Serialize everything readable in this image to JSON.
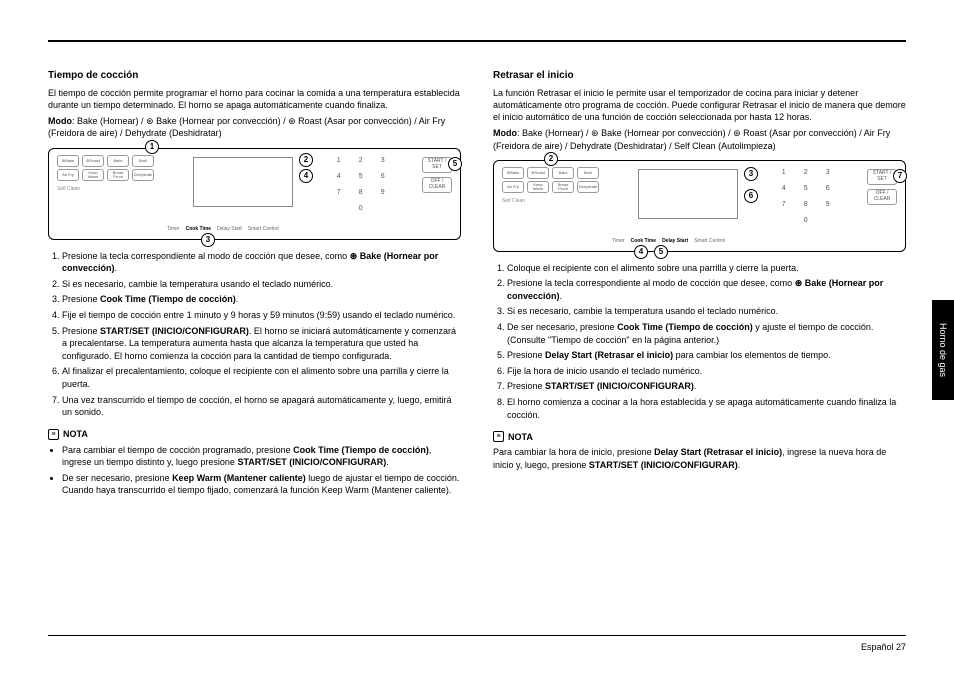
{
  "sideTab": "Horno de gas",
  "footer": "Español  27",
  "left": {
    "heading": "Tiempo de cocción",
    "intro": "El tiempo de cocción permite programar el horno para cocinar la comida a una temperatura establecida durante un tiempo determinado. El horno se apaga automáticamente cuando finaliza.",
    "modo_label": "Modo",
    "modo_text": ": Bake (Hornear) / ⊛ Bake (Hornear por convección) / ⊛ Roast (Asar por convección) / Air Fry (Freidora de aire) / Dehydrate (Deshidratar)",
    "panel": {
      "row1": [
        "⊛Bake",
        "⊛Roast",
        "Bake",
        "Broil"
      ],
      "row2": [
        "Air Fry",
        "Keep Warm",
        "Bread Proof",
        "Dehydrate"
      ],
      "selfclean": "Self Clean",
      "timerrow": [
        "Timer",
        "Cook Time",
        "Delay Start",
        "Smart Control"
      ],
      "keypad": [
        "1",
        "2",
        "3",
        "4",
        "5",
        "6",
        "7",
        "8",
        "9",
        "",
        "0",
        ""
      ],
      "start": "START / SET",
      "off": "OFF / CLEAR",
      "callouts": {
        "c1": "1",
        "c2": "2",
        "c3": "3",
        "c4": "4",
        "c5": "5"
      }
    },
    "steps": [
      "Presione la tecla correspondiente al modo de cocción que desee, como <b>⊛ Bake (Hornear por convección)</b>.",
      "Si es necesario, cambie la temperatura usando el teclado numérico.",
      "Presione <b>Cook Time (Tiempo de cocción)</b>.",
      "Fije el tiempo de cocción entre 1 minuto y 9 horas y 59 minutos (9:59) usando el teclado numérico.",
      "Presione <b>START/SET (INICIO/CONFIGURAR)</b>. El horno se iniciará automáticamente y comenzará a precalentarse. La temperatura aumenta hasta que alcanza la temperatura que usted ha configurado. El horno comienza la cocción para la cantidad de tiempo configurada.",
      "Al finalizar el precalentamiento, coloque el recipiente con el alimento sobre una parrilla y cierre la puerta.",
      "Una vez transcurrido el tiempo de cocción, el horno se apagará automáticamente y, luego, emitirá un sonido."
    ],
    "nota_label": "NOTA",
    "nota": [
      "Para cambiar el tiempo de cocción programado, presione <b>Cook Time (Tiempo de cocción)</b>, ingrese un tiempo distinto y, luego presione <b>START/SET (INICIO/CONFIGURAR)</b>.",
      "De ser necesario, presione <b>Keep Warm (Mantener caliente)</b> luego de ajustar el tiempo de cocción. Cuando haya transcurrido el tiempo fijado, comenzará la función Keep Warm (Mantener caliente)."
    ]
  },
  "right": {
    "heading": "Retrasar el inicio",
    "intro": "La función Retrasar el inicio le permite usar el temporizador de cocina para iniciar y detener automáticamente otro programa de cocción. Puede configurar Retrasar el inicio de manera que demore el inicio automático de una función de cocción seleccionada por hasta 12 horas.",
    "modo_label": "Modo",
    "modo_text": ": Bake (Hornear) / ⊛ Bake (Hornear por convección) / ⊛ Roast (Asar por convección) / Air Fry (Freidora de aire) / Dehydrate (Deshidratar) / Self Clean (Autolimpieza)",
    "panel": {
      "row1": [
        "⊛Bake",
        "⊛Roast",
        "Bake",
        "Broil"
      ],
      "row2": [
        "Air Fry",
        "Keep Warm",
        "Bread Proof",
        "Dehydrate"
      ],
      "selfclean": "Self Clean",
      "timerrow": [
        "Timer",
        "Cook Time",
        "Delay Start",
        "Smart Control"
      ],
      "keypad": [
        "1",
        "2",
        "3",
        "4",
        "5",
        "6",
        "7",
        "8",
        "9",
        "",
        "0",
        ""
      ],
      "start": "START / SET",
      "off": "OFF / CLEAR",
      "callouts": {
        "c2": "2",
        "c3": "3",
        "c4": "4",
        "c5": "5",
        "c6": "6",
        "c7": "7"
      }
    },
    "steps": [
      "Coloque el recipiente con el alimento sobre una parrilla y cierre la puerta.",
      "Presione la tecla correspondiente al modo de cocción que desee, como <b>⊛ Bake (Hornear por convección)</b>.",
      "Si es necesario, cambie la temperatura usando el teclado numérico.",
      "De ser necesario, presione <b>Cook Time (Tiempo de cocción)</b> y ajuste el tiempo de cocción. (Consulte \"Tiempo de cocción\" en la página anterior.)",
      "Presione <b>Delay Start (Retrasar el inicio)</b> para cambiar los elementos de tiempo.",
      "Fije la hora de inicio usando el teclado numérico.",
      "Presione <b>START/SET (INICIO/CONFIGURAR)</b>.",
      "El horno comienza a cocinar a la hora establecida y se apaga automáticamente cuando finaliza la cocción."
    ],
    "nota_label": "NOTA",
    "nota_p": "Para cambiar la hora de inicio, presione <b>Delay Start (Retrasar el inicio)</b>, ingrese la nueva hora de inicio y, luego, presione <b>START/SET (INICIO/CONFIGURAR)</b>."
  }
}
